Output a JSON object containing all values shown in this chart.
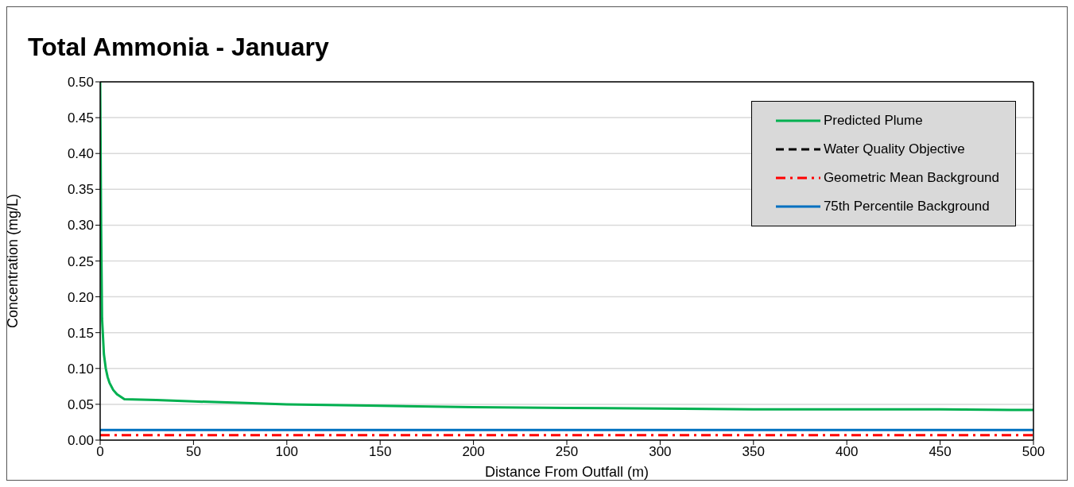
{
  "chart_data": {
    "type": "line",
    "title": "Total Ammonia - January",
    "xlabel": "Distance From Outfall (m)",
    "ylabel": "Concentration (mg/L)",
    "xlim": [
      0,
      500
    ],
    "xticks": [
      0,
      50,
      100,
      150,
      200,
      250,
      300,
      350,
      400,
      450,
      500
    ],
    "ylim": [
      0,
      0.5
    ],
    "yticks": [
      {
        "value": 0,
        "label": "0.00"
      },
      {
        "value": 0.05,
        "label": "0.05"
      },
      {
        "value": 0.1,
        "label": "0.10"
      },
      {
        "value": 0.15,
        "label": "0.15"
      },
      {
        "value": 0.2,
        "label": "0.20"
      },
      {
        "value": 0.25,
        "label": "0.25"
      },
      {
        "value": 0.3,
        "label": "0.30"
      },
      {
        "value": 0.35,
        "label": "0.35"
      },
      {
        "value": 0.4,
        "label": "0.40"
      },
      {
        "value": 0.45,
        "label": "0.45"
      },
      {
        "value": 0.5,
        "label": "0.50"
      }
    ],
    "grid": "y",
    "legend": "top right",
    "marker": "none",
    "series": [
      {
        "name": "Predicted Plume",
        "color": "#00b050",
        "line_style": "solid",
        "x": [
          0,
          0.5,
          1,
          2,
          3,
          4,
          5,
          7,
          9,
          13,
          30,
          50,
          75,
          100,
          150,
          200,
          250,
          300,
          350,
          400,
          450,
          500
        ],
        "values": [
          0.5,
          0.3,
          0.17,
          0.12,
          0.1,
          0.088,
          0.08,
          0.07,
          0.064,
          0.057,
          0.056,
          0.054,
          0.052,
          0.05,
          0.048,
          0.046,
          0.045,
          0.044,
          0.043,
          0.043,
          0.043,
          0.042
        ]
      },
      {
        "name": "Water Quality Objective",
        "color": "#000000",
        "line_style": "dashed"
      },
      {
        "name": "Geometric Mean Background",
        "color": "#ff0000",
        "line_style": "dashdot",
        "x": [
          0,
          500
        ],
        "values": [
          0.007,
          0.007
        ]
      },
      {
        "name": "75th Percentile Background",
        "color": "#0070c0",
        "line_style": "solid",
        "x": [
          0,
          500
        ],
        "values": [
          0.014,
          0.014
        ]
      }
    ]
  }
}
